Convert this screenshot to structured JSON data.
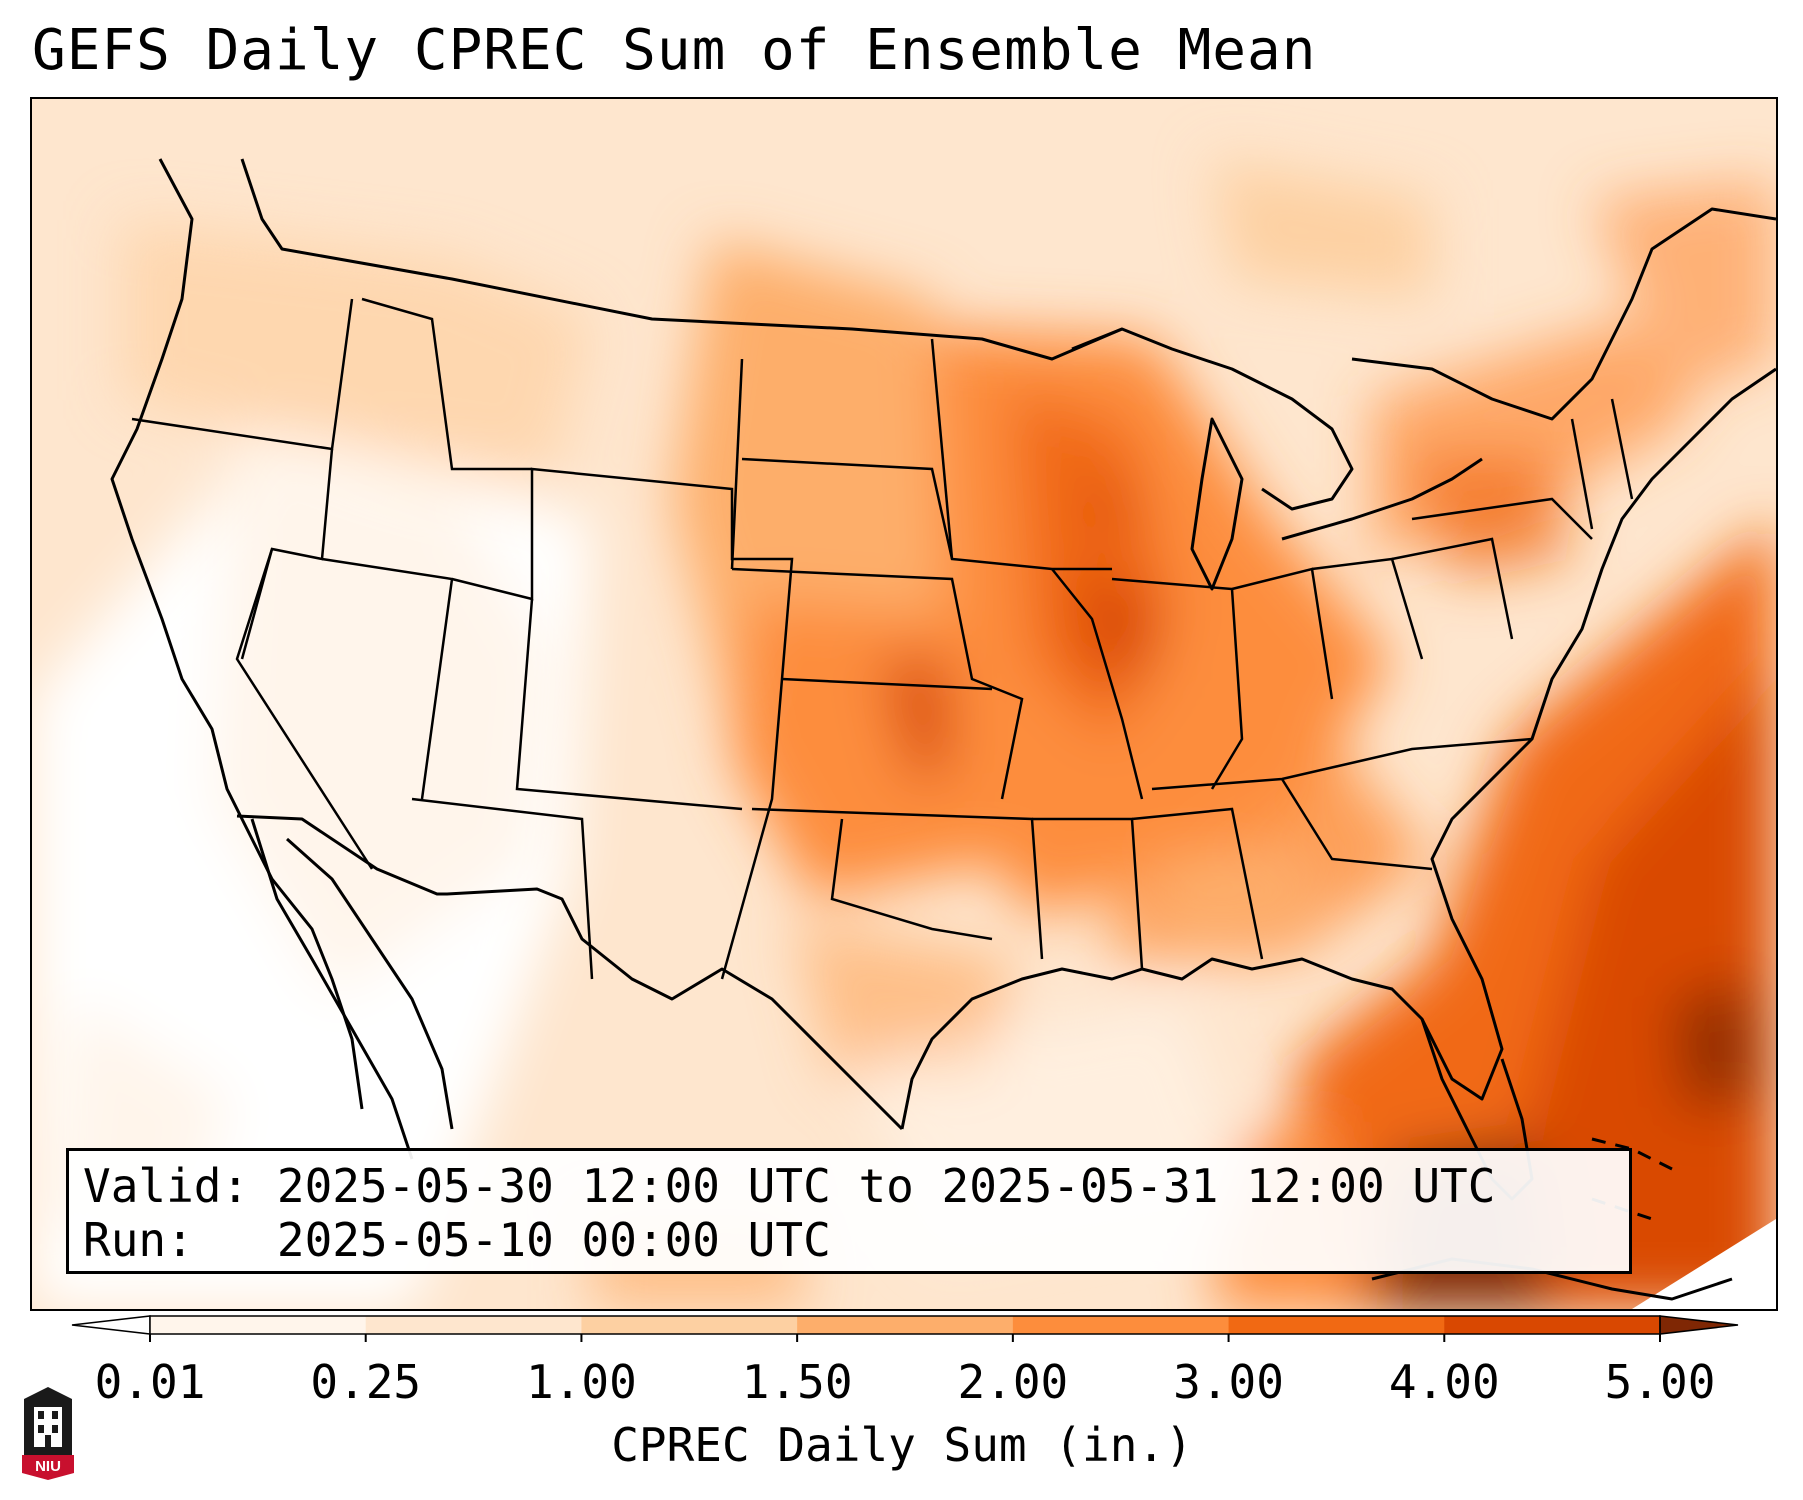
{
  "title": "GEFS Daily CPREC Sum of Ensemble Mean",
  "info": {
    "valid_label": "Valid:",
    "valid_value": "2025-05-30 12:00 UTC to 2025-05-31 12:00 UTC",
    "run_label": "Run:",
    "run_value": "2025-05-10 00:00 UTC"
  },
  "colorbar": {
    "label": "CPREC Daily Sum (in.)",
    "ticks": [
      "0.01",
      "0.25",
      "1.00",
      "1.50",
      "2.00",
      "3.00",
      "4.00",
      "5.00"
    ],
    "under_color": "#ffffff",
    "over_color": "#7f2704",
    "colors": [
      "#fff5eb",
      "#fee6ce",
      "#fdd0a2",
      "#fdae6b",
      "#fd8d3c",
      "#f16913",
      "#d94801"
    ]
  },
  "logo": {
    "text": "NIU",
    "color": "#c8102e"
  }
}
